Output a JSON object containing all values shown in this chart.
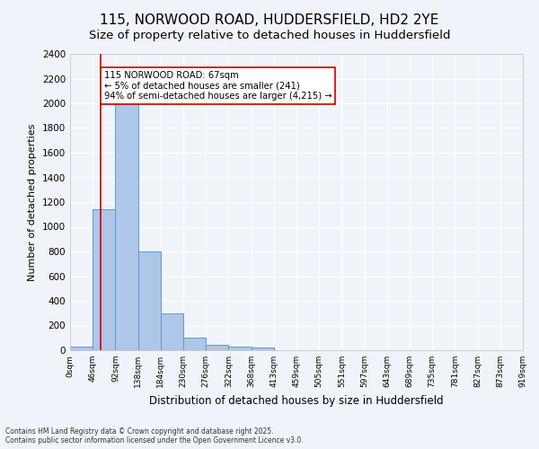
{
  "title1": "115, NORWOOD ROAD, HUDDERSFIELD, HD2 2YE",
  "title2": "Size of property relative to detached houses in Huddersfield",
  "xlabel": "Distribution of detached houses by size in Huddersfield",
  "ylabel": "Number of detached properties",
  "bin_labels": [
    "0sqm",
    "46sqm",
    "92sqm",
    "138sqm",
    "184sqm",
    "230sqm",
    "276sqm",
    "322sqm",
    "368sqm",
    "413sqm",
    "459sqm",
    "505sqm",
    "551sqm",
    "597sqm",
    "643sqm",
    "689sqm",
    "735sqm",
    "781sqm",
    "827sqm",
    "873sqm",
    "919sqm"
  ],
  "bar_heights": [
    30,
    1140,
    2010,
    800,
    300,
    105,
    45,
    30,
    20,
    0,
    0,
    0,
    0,
    0,
    0,
    0,
    0,
    0,
    0,
    0
  ],
  "bar_color": "#aec6e8",
  "bar_edge_color": "#5b9bd5",
  "vline_x": 1.35,
  "vline_color": "#cc0000",
  "annotation_text": "115 NORWOOD ROAD: 67sqm\n← 5% of detached houses are smaller (241)\n94% of semi-detached houses are larger (4,215) →",
  "annotation_box_color": "#ffffff",
  "annotation_box_edge": "#cc0000",
  "ylim": [
    0,
    2400
  ],
  "yticks": [
    0,
    200,
    400,
    600,
    800,
    1000,
    1200,
    1400,
    1600,
    1800,
    2000,
    2200,
    2400
  ],
  "footer": "Contains HM Land Registry data © Crown copyright and database right 2025.\nContains public sector information licensed under the Open Government Licence v3.0.",
  "bg_color": "#f0f4fa",
  "grid_color": "#ffffff",
  "title1_fontsize": 11,
  "title2_fontsize": 9.5
}
